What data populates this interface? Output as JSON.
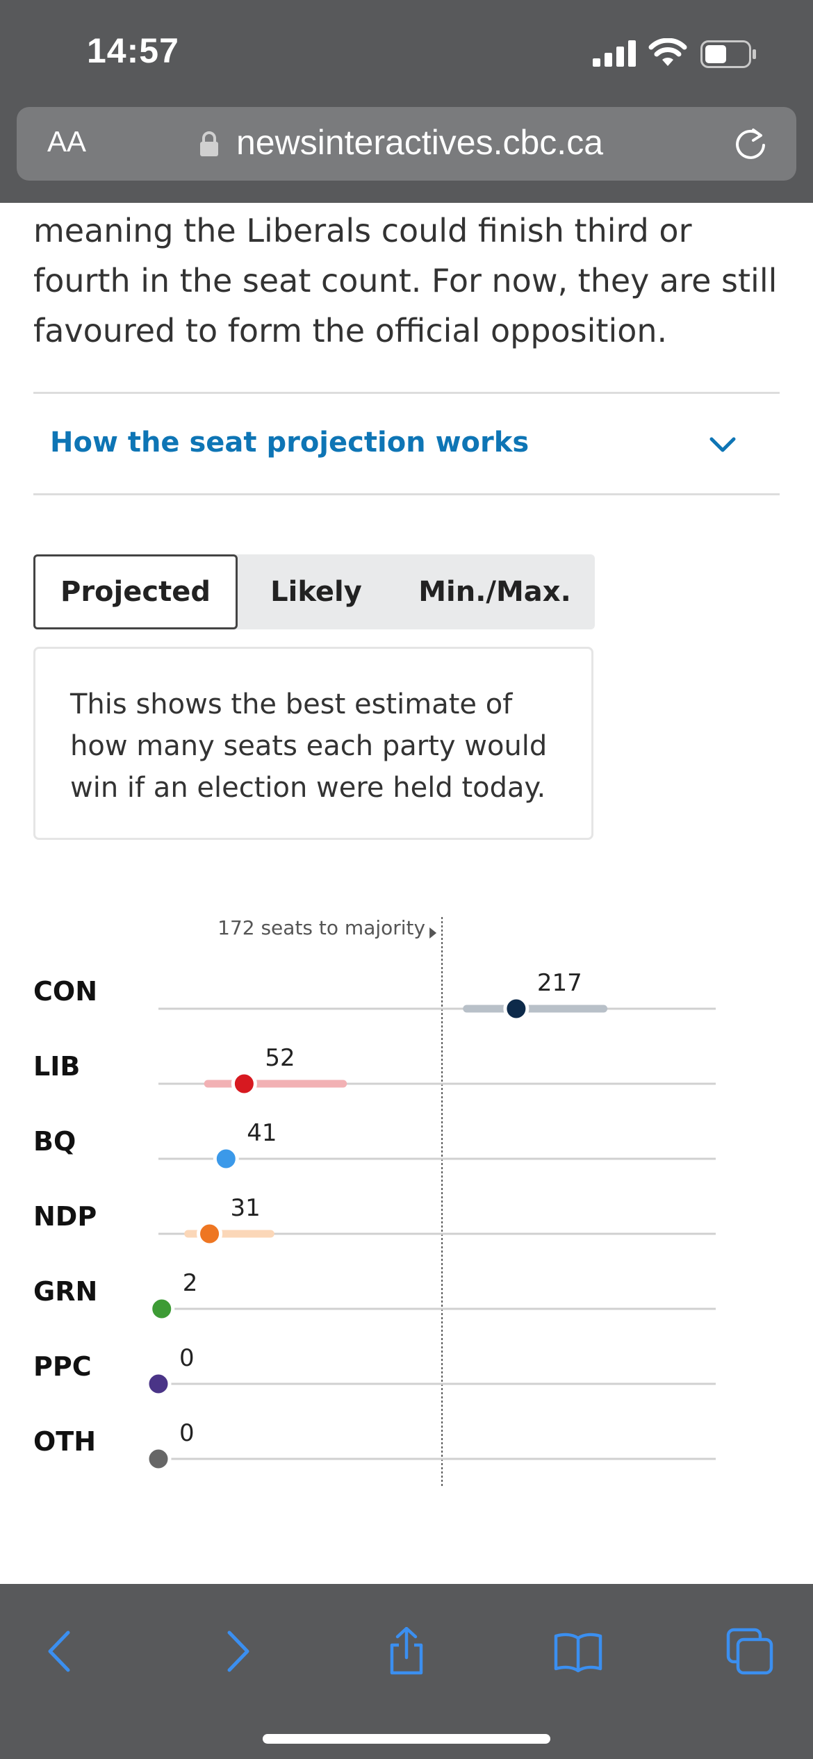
{
  "status_bar": {
    "time": "14:57"
  },
  "browser": {
    "text_size_label": "AA",
    "url": "newsinteractives.cbc.ca"
  },
  "article": {
    "intro": "meaning the Liberals could finish third or fourth in the seat count. For now, they are still favoured to form the official opposition.",
    "accordion_label": "How the seat projection works"
  },
  "tabs": [
    {
      "label": "Projected",
      "active": true
    },
    {
      "label": "Likely",
      "active": false
    },
    {
      "label": "Min./Max.",
      "active": false
    }
  ],
  "description": "This shows the best estimate of how many seats each party would win if an election were held today.",
  "chart_data": {
    "type": "dot-range",
    "majority_label": "172 seats to majority",
    "majority_threshold": 172,
    "xlim": [
      0,
      338
    ],
    "rows": [
      {
        "party": "CON",
        "value": 217,
        "range": [
          187,
          270
        ],
        "color": "#0d2a4a",
        "range_color": "#b8c0c8"
      },
      {
        "party": "LIB",
        "value": 52,
        "range": [
          30,
          112
        ],
        "color": "#d71920",
        "range_color": "#f2b1b4"
      },
      {
        "party": "BQ",
        "value": 41,
        "range": [
          36,
          46
        ],
        "color": "#3b99e9",
        "range_color": "#cfe3f7"
      },
      {
        "party": "NDP",
        "value": 31,
        "range": [
          18,
          68
        ],
        "color": "#ee7622",
        "range_color": "#fbd7b8"
      },
      {
        "party": "GRN",
        "value": 2,
        "range": [
          0,
          4
        ],
        "color": "#3d9b35",
        "range_color": "#c9e6c4"
      },
      {
        "party": "PPC",
        "value": 0,
        "range": [
          0,
          0
        ],
        "color": "#4a3487",
        "range_color": "#d0c8e6"
      },
      {
        "party": "OTH",
        "value": 0,
        "range": [
          0,
          0
        ],
        "color": "#666666",
        "range_color": "#d4d4d4"
      }
    ]
  },
  "colors": {
    "chrome": "#58595b",
    "link": "#0e75b5",
    "toolbar_icon": "#3b8ff0"
  },
  "toolbar_icons": [
    "back-icon",
    "forward-icon",
    "share-icon",
    "bookmarks-icon",
    "tabs-icon"
  ]
}
